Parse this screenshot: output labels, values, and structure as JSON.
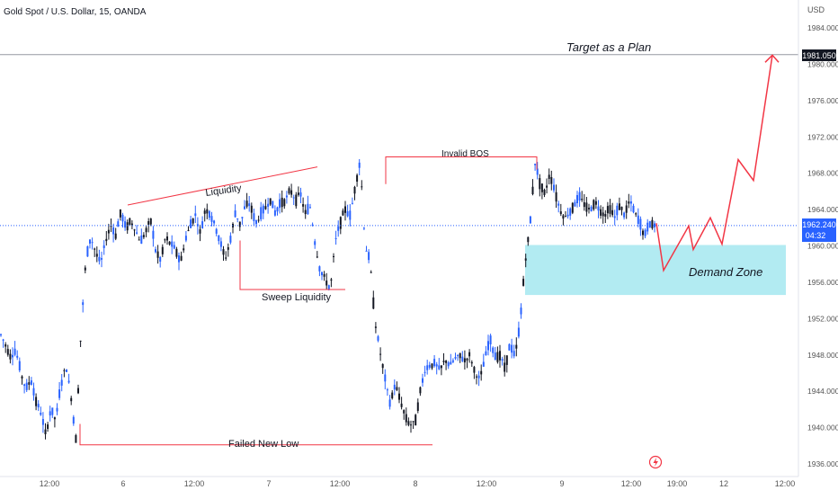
{
  "header": {
    "title": "Gold Spot / U.S. Dollar, 15, OANDA",
    "currency": "USD"
  },
  "chart_data": {
    "type": "candlestick",
    "title": "Gold Spot / U.S. Dollar, 15, OANDA",
    "ylabel": "USD",
    "ylim": [
      1935,
      1987
    ],
    "y_ticks": [
      "1984.000",
      "1980.000",
      "1976.000",
      "1972.000",
      "1968.000",
      "1964.000",
      "1960.000",
      "1956.000",
      "1952.000",
      "1948.000",
      "1944.000",
      "1940.000",
      "1936.000"
    ],
    "x_ticks": [
      "12:00",
      "6",
      "12:00",
      "7",
      "12:00",
      "8",
      "12:00",
      "9",
      "12:00",
      "19:00",
      "12",
      "12:00"
    ],
    "last_price": "1962.240",
    "countdown": "04:32",
    "target_price": "1981.050",
    "colors": {
      "up": "#2962ff",
      "down": "#131722",
      "annotation": "#f23645",
      "zone": "#b2ebf2",
      "price_line": "#2962ff"
    },
    "annotations": {
      "target": "Target as a Plan",
      "liquidity": "Liquidity",
      "sweep": "Sweep Liquidity",
      "invalid_bos": "Invalid BOS",
      "demand_zone": "Demand Zone",
      "failed_low": "Failed New Low"
    },
    "demand_zone_range": [
      1954.6,
      1960.1
    ],
    "projected_path": [
      1962.5,
      1957.3,
      1962.2,
      1959.6,
      1963.1,
      1960.2,
      1969.5,
      1967.2,
      1981.0
    ],
    "price_path": [
      1950.2,
      1949.0,
      1947.8,
      1948.5,
      1946.0,
      1944.2,
      1945.3,
      1943.0,
      1941.6,
      1939.2,
      1942.0,
      1940.8,
      1944.6,
      1946.9,
      1943.7,
      1938.6,
      1950.0,
      1958.2,
      1961.0,
      1959.3,
      1958.0,
      1960.6,
      1962.3,
      1961.2,
      1963.7,
      1962.0,
      1962.8,
      1961.7,
      1960.4,
      1961.6,
      1962.9,
      1959.5,
      1958.4,
      1961.0,
      1960.2,
      1959.6,
      1958.2,
      1960.7,
      1962.4,
      1963.4,
      1961.3,
      1964.2,
      1963.4,
      1962.1,
      1960.3,
      1958.6,
      1960.7,
      1963.7,
      1962.3,
      1964.5,
      1964.6,
      1962.4,
      1963.3,
      1964.2,
      1965.1,
      1963.5,
      1964.8,
      1965.0,
      1966.2,
      1965.1,
      1965.8,
      1963.6,
      1964.3,
      1960.1,
      1957.2,
      1956.4,
      1955.1,
      1960.4,
      1962.6,
      1964.1,
      1963.2,
      1966.6,
      1969.4,
      1960.0,
      1958.2,
      1951.6,
      1948.3,
      1945.3,
      1942.6,
      1944.8,
      1943.1,
      1941.3,
      1940.3,
      1940.6,
      1943.9,
      1946.3,
      1946.9,
      1947.0,
      1946.3,
      1947.5,
      1946.8,
      1947.6,
      1947.9,
      1947.4,
      1948.0,
      1946.0,
      1945.3,
      1947.6,
      1949.7,
      1947.9,
      1948.0,
      1946.6,
      1949.0,
      1947.8,
      1951.2,
      1958.0,
      1962.0,
      1969.2,
      1967.0,
      1965.7,
      1968.0,
      1966.1,
      1964.0,
      1963.1,
      1963.7,
      1964.7,
      1965.3,
      1964.6,
      1963.9,
      1964.9,
      1964.0,
      1963.4,
      1964.3,
      1963.1,
      1964.5,
      1963.4,
      1965.0,
      1963.7,
      1962.5,
      1961.1,
      1962.5,
      1962.3
    ]
  }
}
